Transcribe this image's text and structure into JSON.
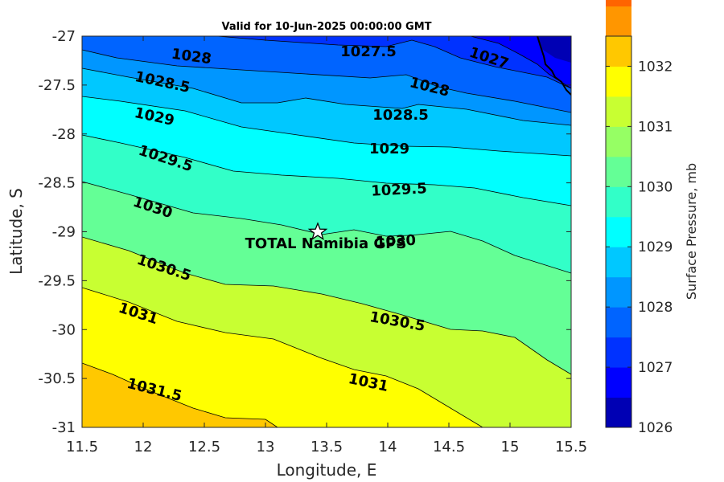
{
  "chart_data": {
    "type": "heatmap",
    "subtype": "filled-contour",
    "title": "Valid for 10-Jun-2025 00:00:00 GMT",
    "xlabel": "Longitude, E",
    "ylabel": "Latitude, S",
    "xlim": [
      11.5,
      15.5
    ],
    "ylim": [
      -31,
      -27
    ],
    "xticks": [
      "11.5",
      "12",
      "12.5",
      "13",
      "13.5",
      "14",
      "14.5",
      "15",
      "15.5"
    ],
    "yticks": [
      "-27",
      "-27.5",
      "-28",
      "-28.5",
      "-29",
      "-29.5",
      "-30",
      "-30.5",
      "-31"
    ],
    "colorbar": {
      "label": "Surface Pressure, mb",
      "range": [
        1026,
        1032.5
      ],
      "step": 0.5,
      "ticks": [
        "1026",
        "1027",
        "1028",
        "1029",
        "1030",
        "1031",
        "1032"
      ],
      "colors": [
        "#0000b4",
        "#0000ff",
        "#0032ff",
        "#0064ff",
        "#0096ff",
        "#00c8ff",
        "#00ffff",
        "#32ffc8",
        "#64ff96",
        "#96ff64",
        "#c8ff32",
        "#ffff00",
        "#ffc800",
        "#ff9600",
        "#ff6400",
        "#ff3200",
        "#ff0000"
      ]
    },
    "contours": [
      {
        "level": 1027,
        "label": "1027"
      },
      {
        "level": 1027.5,
        "label": "1027.5"
      },
      {
        "level": 1028,
        "label": "1028"
      },
      {
        "level": 1028.5,
        "label": "1028.5"
      },
      {
        "level": 1029,
        "label": "1029"
      },
      {
        "level": 1029.5,
        "label": "1029.5"
      },
      {
        "level": 1030,
        "label": "1030"
      },
      {
        "level": 1030.5,
        "label": "1030.5"
      },
      {
        "level": 1031,
        "label": "1031"
      },
      {
        "level": 1031.5,
        "label": "1031.5"
      }
    ],
    "marker": {
      "name": "TOTAL Namibia GPS",
      "lon": 13.43,
      "lat": -29.0,
      "symbol": "star"
    }
  }
}
